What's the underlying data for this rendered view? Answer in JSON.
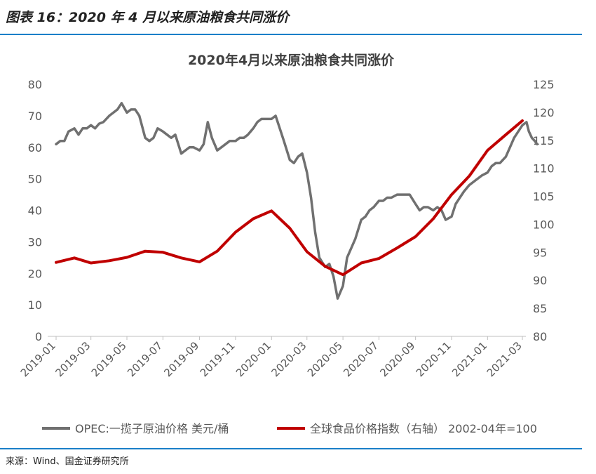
{
  "header": {
    "title": "图表 16：2020 年 4 月以来原油粮食共同涨价"
  },
  "footer": {
    "source": "来源：Wind、国金证券研究所"
  },
  "chart_data": {
    "type": "line",
    "title": "2020年4月以来原油粮食共同涨价",
    "x_ticks": [
      "2019-01",
      "2019-03",
      "2019-05",
      "2019-07",
      "2019-09",
      "2019-11",
      "2020-01",
      "2020-03",
      "2020-05",
      "2020-07",
      "2020-09",
      "2020-11",
      "2021-01",
      "2021-03"
    ],
    "ylim_left": [
      0,
      80
    ],
    "yticks_left": [
      0,
      10,
      20,
      30,
      40,
      50,
      60,
      70,
      80
    ],
    "ylim_right": [
      80,
      125
    ],
    "yticks_right": [
      80,
      85,
      90,
      95,
      100,
      105,
      110,
      115,
      120,
      125
    ],
    "grid": false,
    "legend_position": "bottom",
    "series": [
      {
        "name": "OPEC:一揽子原油价格 美元/桶",
        "axis": "left",
        "color": "#707070",
        "points": [
          [
            "2019-01-01",
            61
          ],
          [
            "2019-01-08",
            62
          ],
          [
            "2019-01-15",
            62
          ],
          [
            "2019-01-22",
            65
          ],
          [
            "2019-02-01",
            66
          ],
          [
            "2019-02-08",
            64
          ],
          [
            "2019-02-15",
            66
          ],
          [
            "2019-02-22",
            66
          ],
          [
            "2019-03-01",
            67
          ],
          [
            "2019-03-08",
            66
          ],
          [
            "2019-03-15",
            67.5
          ],
          [
            "2019-03-22",
            68
          ],
          [
            "2019-04-01",
            70
          ],
          [
            "2019-04-08",
            71
          ],
          [
            "2019-04-15",
            72
          ],
          [
            "2019-04-22",
            74
          ],
          [
            "2019-05-01",
            71
          ],
          [
            "2019-05-08",
            72
          ],
          [
            "2019-05-15",
            72
          ],
          [
            "2019-05-22",
            70
          ],
          [
            "2019-06-01",
            63
          ],
          [
            "2019-06-08",
            62
          ],
          [
            "2019-06-15",
            63
          ],
          [
            "2019-06-22",
            66
          ],
          [
            "2019-07-01",
            65
          ],
          [
            "2019-07-08",
            64
          ],
          [
            "2019-07-15",
            63
          ],
          [
            "2019-07-22",
            64
          ],
          [
            "2019-08-01",
            58
          ],
          [
            "2019-08-08",
            59
          ],
          [
            "2019-08-15",
            60
          ],
          [
            "2019-08-22",
            60
          ],
          [
            "2019-09-01",
            59
          ],
          [
            "2019-09-08",
            61
          ],
          [
            "2019-09-15",
            68
          ],
          [
            "2019-09-22",
            63
          ],
          [
            "2019-10-01",
            59
          ],
          [
            "2019-10-08",
            60
          ],
          [
            "2019-10-15",
            61
          ],
          [
            "2019-10-22",
            62
          ],
          [
            "2019-11-01",
            62
          ],
          [
            "2019-11-08",
            63
          ],
          [
            "2019-11-15",
            63
          ],
          [
            "2019-11-22",
            64
          ],
          [
            "2019-12-01",
            66
          ],
          [
            "2019-12-08",
            68
          ],
          [
            "2019-12-15",
            69
          ],
          [
            "2019-12-22",
            69
          ],
          [
            "2020-01-01",
            69
          ],
          [
            "2020-01-08",
            70
          ],
          [
            "2020-01-15",
            66
          ],
          [
            "2020-01-22",
            62
          ],
          [
            "2020-02-01",
            56
          ],
          [
            "2020-02-08",
            55
          ],
          [
            "2020-02-15",
            57
          ],
          [
            "2020-02-22",
            58
          ],
          [
            "2020-03-01",
            52
          ],
          [
            "2020-03-08",
            44
          ],
          [
            "2020-03-15",
            33
          ],
          [
            "2020-03-22",
            25
          ],
          [
            "2020-04-01",
            22
          ],
          [
            "2020-04-08",
            23
          ],
          [
            "2020-04-15",
            19
          ],
          [
            "2020-04-22",
            12
          ],
          [
            "2020-05-01",
            16
          ],
          [
            "2020-05-08",
            25
          ],
          [
            "2020-05-15",
            28
          ],
          [
            "2020-05-22",
            31
          ],
          [
            "2020-06-01",
            37
          ],
          [
            "2020-06-08",
            38
          ],
          [
            "2020-06-15",
            40
          ],
          [
            "2020-06-22",
            41
          ],
          [
            "2020-07-01",
            43
          ],
          [
            "2020-07-08",
            43
          ],
          [
            "2020-07-15",
            44
          ],
          [
            "2020-07-22",
            44
          ],
          [
            "2020-08-01",
            45
          ],
          [
            "2020-08-08",
            45
          ],
          [
            "2020-08-15",
            45
          ],
          [
            "2020-08-22",
            45
          ],
          [
            "2020-09-01",
            42
          ],
          [
            "2020-09-08",
            40
          ],
          [
            "2020-09-15",
            41
          ],
          [
            "2020-09-22",
            41
          ],
          [
            "2020-10-01",
            40
          ],
          [
            "2020-10-08",
            41
          ],
          [
            "2020-10-15",
            40
          ],
          [
            "2020-10-22",
            37
          ],
          [
            "2020-11-01",
            38
          ],
          [
            "2020-11-08",
            42
          ],
          [
            "2020-11-15",
            44
          ],
          [
            "2020-11-22",
            46
          ],
          [
            "2020-12-01",
            48
          ],
          [
            "2020-12-08",
            49
          ],
          [
            "2020-12-15",
            50
          ],
          [
            "2020-12-22",
            51
          ],
          [
            "2021-01-01",
            52
          ],
          [
            "2021-01-08",
            54
          ],
          [
            "2021-01-15",
            55
          ],
          [
            "2021-01-22",
            55
          ],
          [
            "2021-02-01",
            57
          ],
          [
            "2021-02-08",
            60
          ],
          [
            "2021-02-15",
            63
          ],
          [
            "2021-02-22",
            65
          ],
          [
            "2021-03-01",
            67
          ],
          [
            "2021-03-08",
            68
          ],
          [
            "2021-03-12",
            65
          ],
          [
            "2021-03-17",
            63
          ],
          [
            "2021-03-22",
            62
          ],
          [
            "2021-03-26",
            61
          ]
        ]
      },
      {
        "name": "全球食品价格指数（右轴） 2002-04年=100",
        "axis": "right",
        "color": "#c00000",
        "points": [
          [
            "2019-01-01",
            93.2
          ],
          [
            "2019-02-01",
            94.0
          ],
          [
            "2019-03-01",
            93.1
          ],
          [
            "2019-04-01",
            93.5
          ],
          [
            "2019-05-01",
            94.1
          ],
          [
            "2019-06-01",
            95.2
          ],
          [
            "2019-07-01",
            95.0
          ],
          [
            "2019-08-01",
            94.0
          ],
          [
            "2019-09-01",
            93.3
          ],
          [
            "2019-10-01",
            95.2
          ],
          [
            "2019-11-01",
            98.6
          ],
          [
            "2019-12-01",
            101.0
          ],
          [
            "2020-01-01",
            102.4
          ],
          [
            "2020-02-01",
            99.3
          ],
          [
            "2020-03-01",
            95.1
          ],
          [
            "2020-04-01",
            92.5
          ],
          [
            "2020-05-01",
            91.0
          ],
          [
            "2020-06-01",
            93.1
          ],
          [
            "2020-07-01",
            93.9
          ],
          [
            "2020-08-01",
            95.8
          ],
          [
            "2020-09-01",
            97.8
          ],
          [
            "2020-10-01",
            101.0
          ],
          [
            "2020-11-01",
            105.3
          ],
          [
            "2020-12-01",
            108.6
          ],
          [
            "2021-01-01",
            113.2
          ],
          [
            "2021-02-01",
            116.0
          ],
          [
            "2021-03-01",
            118.5
          ]
        ]
      }
    ]
  }
}
